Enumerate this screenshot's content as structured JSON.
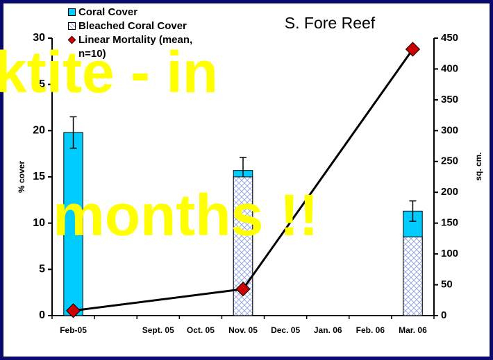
{
  "chart_data": {
    "type": "bar-line",
    "title": "S. Fore Reef",
    "y_label": "% cover",
    "y2_label": "sq. cm.",
    "categories": [
      "Feb-05",
      null,
      "Sept. 05",
      "Oct. 05",
      "Nov. 05",
      "Dec. 05",
      "Jan. 06",
      "Feb. 06",
      "Mar. 06"
    ],
    "series": [
      {
        "name": "Coral Cover",
        "type": "bar",
        "color": "#00ccff",
        "values": [
          19.8,
          null,
          null,
          null,
          15.7,
          null,
          null,
          null,
          11.3
        ],
        "errors": [
          1.7,
          null,
          null,
          null,
          1.4,
          null,
          null,
          null,
          1.1
        ]
      },
      {
        "name": "Bleached Coral Cover",
        "type": "bar",
        "color": "#99aadd",
        "pattern": "crosshatch",
        "values": [
          0,
          null,
          null,
          null,
          15.0,
          null,
          null,
          null,
          8.5
        ]
      },
      {
        "name": "Linear Mortality (mean, n=10)",
        "type": "line",
        "axis": "y2",
        "color": "#000000",
        "marker_color": "#cc0000",
        "connect_gaps": true,
        "values": [
          8,
          null,
          null,
          null,
          43,
          null,
          null,
          null,
          432
        ]
      }
    ],
    "ylim": [
      0,
      30
    ],
    "yticks": [
      0,
      5,
      10,
      15,
      20,
      25,
      30
    ],
    "y2lim": [
      0,
      450
    ],
    "y2ticks": [
      0,
      50,
      100,
      150,
      200,
      250,
      300,
      350,
      400,
      450
    ],
    "overlay_texts": [
      "ktite - in",
      "months !!"
    ]
  }
}
